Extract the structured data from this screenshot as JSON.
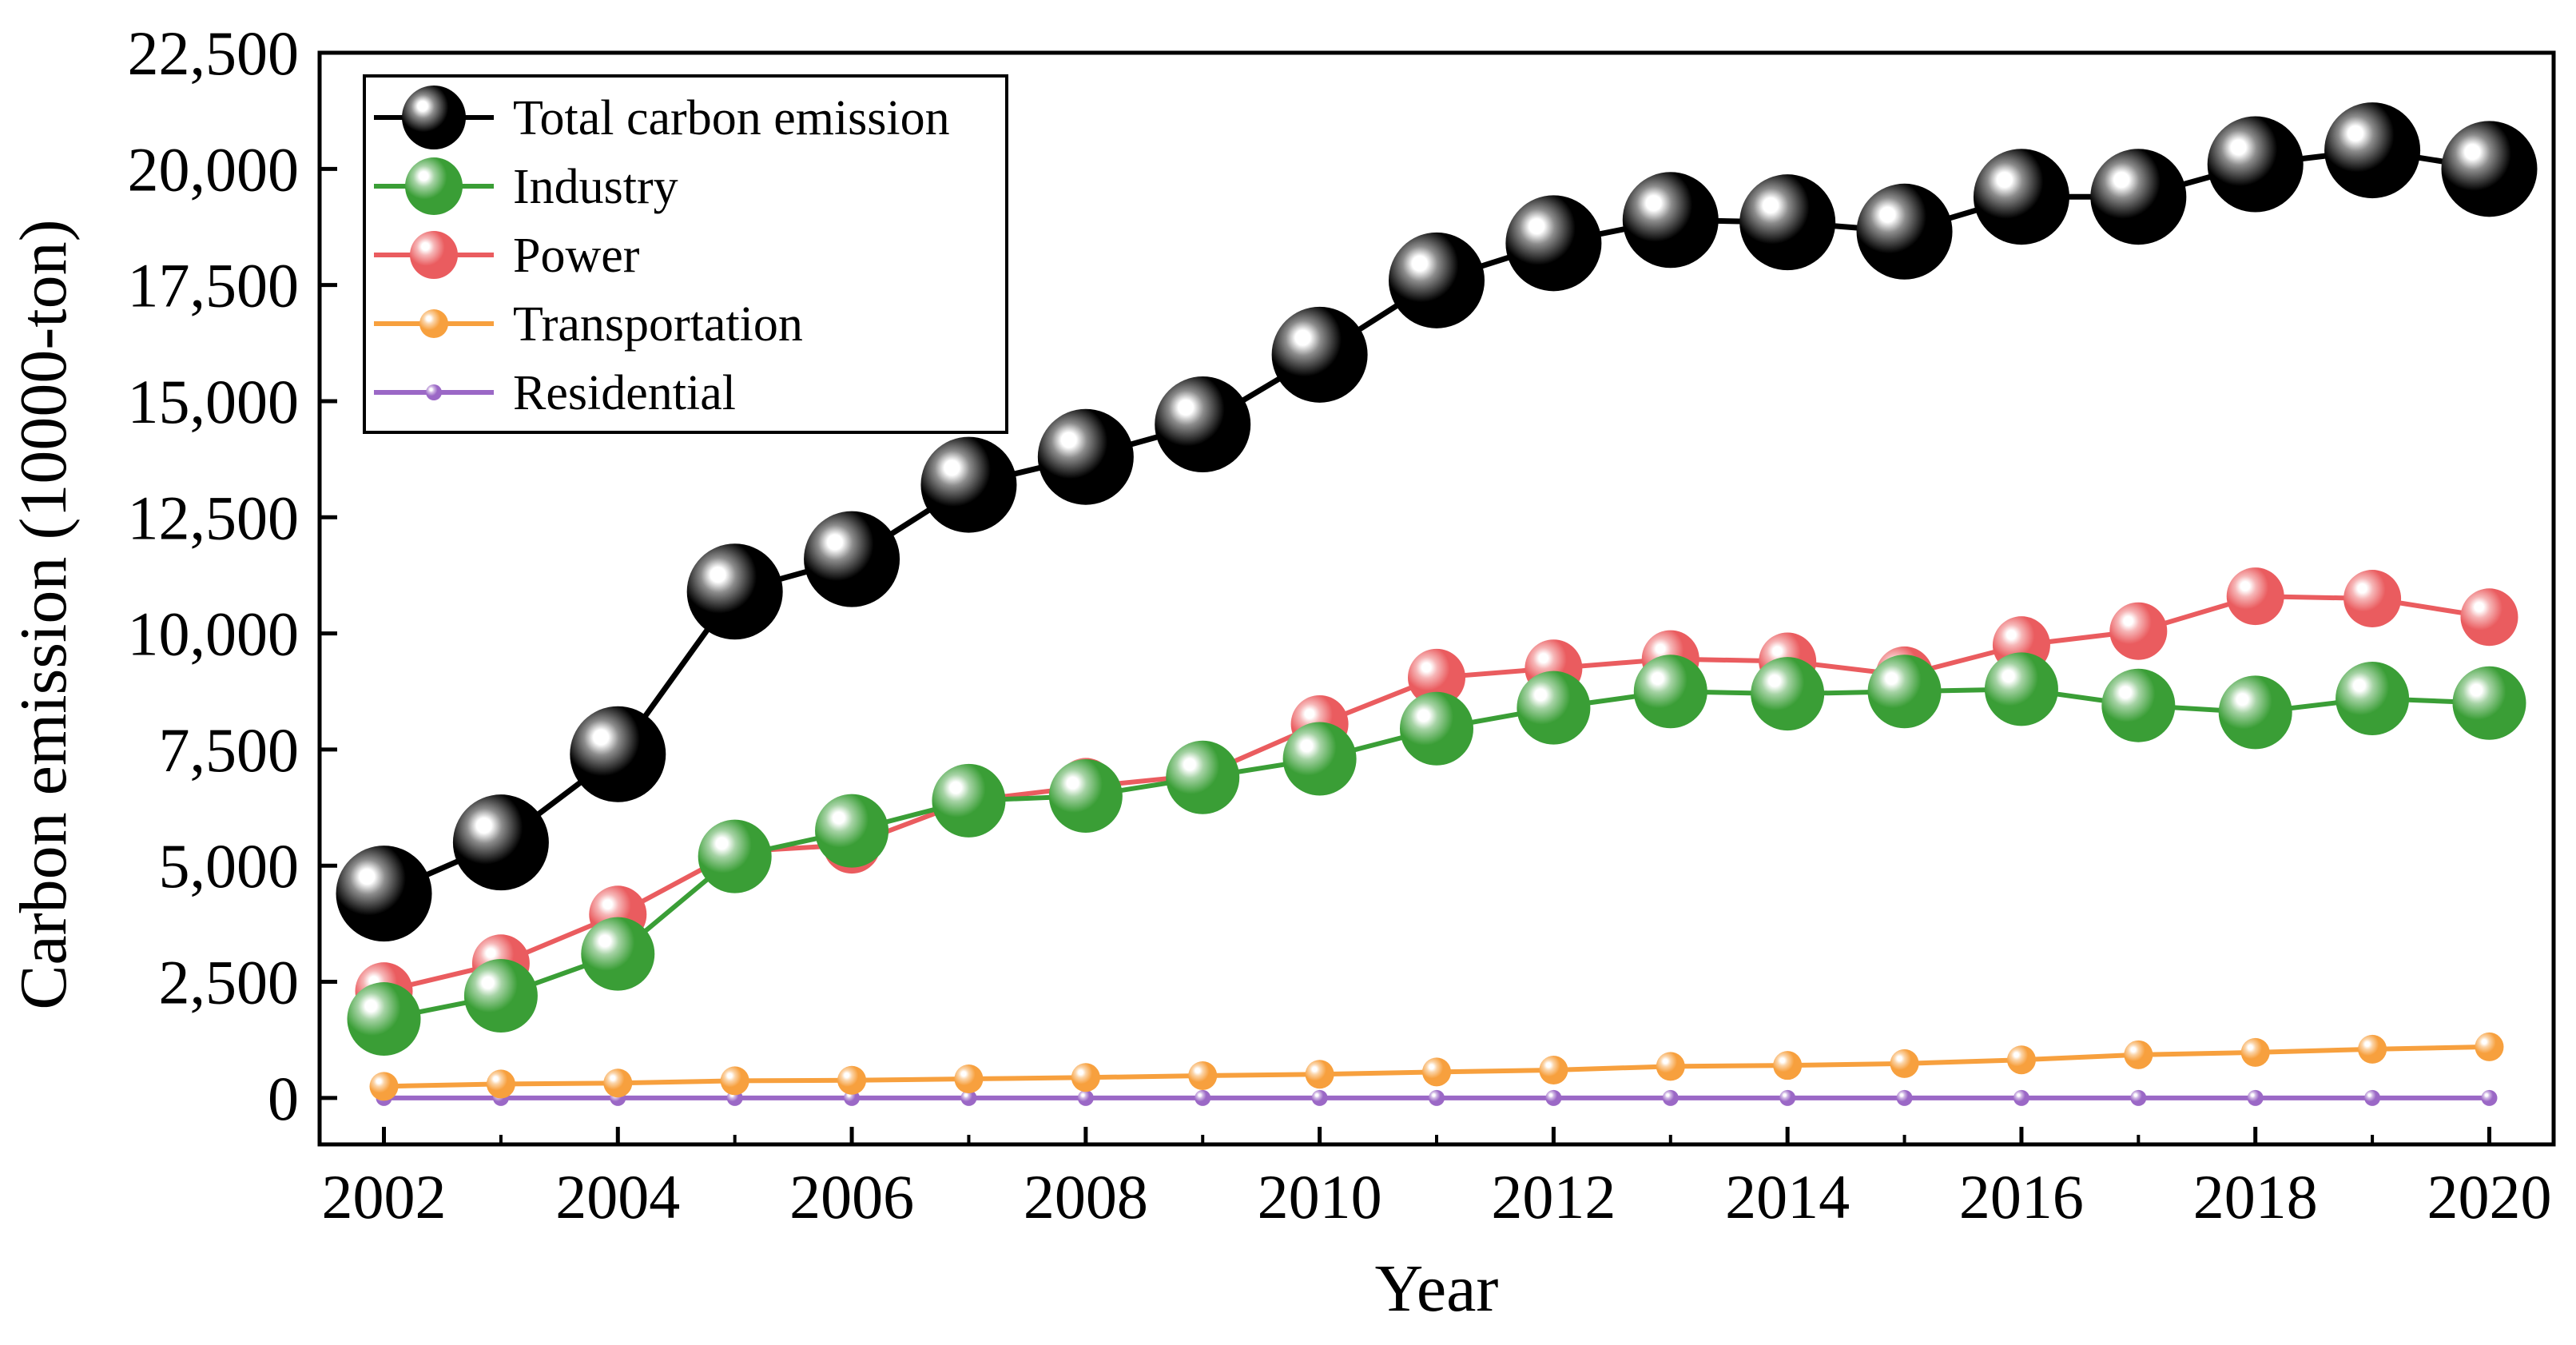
{
  "chart_data": {
    "type": "line",
    "title": "",
    "xlabel": "Year",
    "ylabel": "Carbon emission (10000-ton)",
    "x": [
      2002,
      2003,
      2004,
      2005,
      2006,
      2007,
      2008,
      2009,
      2010,
      2011,
      2012,
      2013,
      2014,
      2015,
      2016,
      2017,
      2018,
      2019,
      2020
    ],
    "xlim": [
      2001.45,
      2020.55
    ],
    "ylim": [
      -1000,
      22500
    ],
    "x_ticks": [
      2002,
      2004,
      2006,
      2008,
      2010,
      2012,
      2014,
      2016,
      2018,
      2020
    ],
    "x_tick_labels": [
      "2002",
      "2004",
      "2006",
      "2008",
      "2010",
      "2012",
      "2014",
      "2016",
      "2018",
      "2020"
    ],
    "y_ticks": [
      0,
      2500,
      5000,
      7500,
      10000,
      12500,
      15000,
      17500,
      20000,
      22500
    ],
    "y_tick_labels": [
      "0",
      "2,500",
      "5,000",
      "7,500",
      "10,000",
      "12,500",
      "15,000",
      "17,500",
      "20,000",
      "22,500"
    ],
    "grid": false,
    "legend_position": "top-left",
    "series": [
      {
        "name": "Total carbon emission",
        "color": "#000000",
        "values": [
          4400,
          5500,
          7400,
          10900,
          11600,
          13200,
          13800,
          14500,
          16000,
          17600,
          18400,
          18900,
          18850,
          18650,
          19400,
          19400,
          20100,
          20400,
          20000
        ]
      },
      {
        "name": "Industry",
        "color": "#3A9E36",
        "values": [
          1700,
          2200,
          3100,
          5200,
          5750,
          6400,
          6500,
          6900,
          7300,
          7950,
          8400,
          8750,
          8700,
          8750,
          8800,
          8450,
          8300,
          8600,
          8500
        ]
      },
      {
        "name": "Power",
        "color": "#EA5C5F",
        "values": [
          2300,
          2900,
          3950,
          5300,
          5450,
          6400,
          6700,
          6950,
          8050,
          9050,
          9250,
          9450,
          9400,
          9100,
          9750,
          10050,
          10800,
          10750,
          10350
        ]
      },
      {
        "name": "Transportation",
        "color": "#F7A03E",
        "values": [
          250,
          300,
          320,
          370,
          380,
          410,
          440,
          480,
          510,
          560,
          600,
          680,
          700,
          740,
          820,
          930,
          980,
          1050,
          1100
        ]
      },
      {
        "name": "Residential",
        "color": "#9B68C6",
        "values": [
          0,
          0,
          0,
          0,
          0,
          0,
          0,
          0,
          0,
          0,
          0,
          0,
          0,
          0,
          0,
          0,
          0,
          0,
          0
        ]
      }
    ]
  }
}
